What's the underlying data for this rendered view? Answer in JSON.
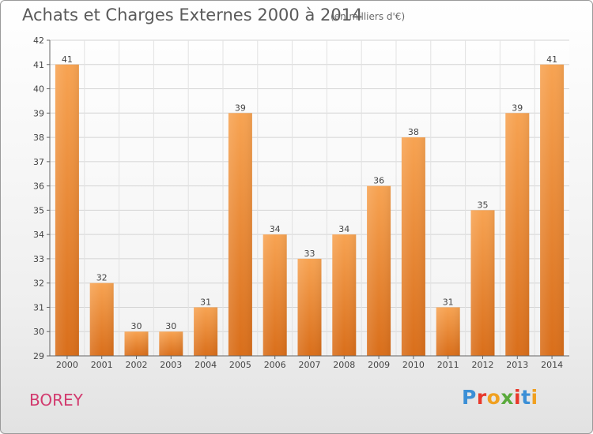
{
  "header": {
    "title": "Achats et Charges Externes 2000 à 2014",
    "subtitle": "(en milliers d'€)"
  },
  "footer": {
    "place": "BOREY",
    "logo": "Proxiti",
    "logo_colors": [
      "#3b8fd6",
      "#e8382b",
      "#f0a020",
      "#5aaa3c",
      "#e8382b",
      "#3b8fd6",
      "#f0a020"
    ]
  },
  "chart_data": {
    "type": "bar",
    "title": "Achats et Charges Externes 2000 à 2014",
    "subtitle": "(en milliers d'€)",
    "categories": [
      "2000",
      "2001",
      "2002",
      "2003",
      "2004",
      "2005",
      "2006",
      "2007",
      "2008",
      "2009",
      "2010",
      "2011",
      "2012",
      "2013",
      "2014"
    ],
    "values": [
      41,
      32,
      30,
      30,
      31,
      39,
      34,
      33,
      34,
      36,
      38,
      31,
      35,
      39,
      41
    ],
    "ylim": [
      29,
      42
    ],
    "yticks": [
      29,
      30,
      31,
      32,
      33,
      34,
      35,
      36,
      37,
      38,
      39,
      40,
      41,
      42
    ],
    "grid": true,
    "bar_color_top": "#f7a352",
    "bar_color_bottom": "#d96e1a"
  }
}
